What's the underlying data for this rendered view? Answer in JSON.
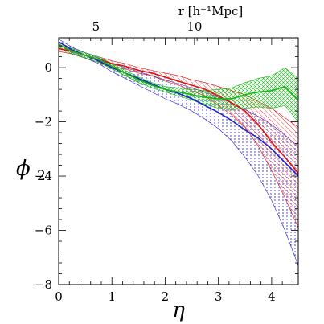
{
  "chart_data": {
    "type": "line",
    "xlabel": "η",
    "ylabel_main": "ϕ",
    "ylabel_sub": "2",
    "top_axis_label": "r [h⁻¹Mpc]",
    "xlim": [
      0,
      4.5
    ],
    "ylim": [
      -8,
      1.1
    ],
    "x_ticks": [
      0,
      1,
      2,
      3,
      4
    ],
    "y_ticks": [
      0,
      -2,
      -4,
      -6,
      -8
    ],
    "top_ticks": [
      {
        "label": "5",
        "eta": 0.7
      },
      {
        "label": "10",
        "eta": 2.55
      }
    ],
    "grid": false,
    "series": [
      {
        "color": "#2222cc",
        "band_style": "vertical-dotted",
        "x": [
          0,
          0.25,
          0.5,
          0.75,
          1.0,
          1.25,
          1.5,
          1.75,
          2.0,
          2.25,
          2.5,
          2.75,
          3.0,
          3.25,
          3.5,
          3.75,
          4.0,
          4.25,
          4.5
        ],
        "values": [
          0.95,
          0.65,
          0.45,
          0.25,
          0.0,
          -0.2,
          -0.4,
          -0.6,
          -0.8,
          -0.95,
          -1.15,
          -1.4,
          -1.65,
          -1.95,
          -2.3,
          -2.6,
          -3.0,
          -3.5,
          -4.0
        ],
        "upper": [
          1.05,
          0.75,
          0.55,
          0.35,
          0.15,
          0.0,
          -0.15,
          -0.3,
          -0.45,
          -0.6,
          -0.75,
          -0.9,
          -1.1,
          -1.3,
          -1.55,
          -1.8,
          -2.1,
          -2.5,
          -2.9
        ],
        "lower": [
          0.85,
          0.55,
          0.35,
          0.15,
          -0.15,
          -0.4,
          -0.65,
          -0.9,
          -1.15,
          -1.35,
          -1.6,
          -1.9,
          -2.25,
          -2.7,
          -3.3,
          -4.0,
          -4.9,
          -6.0,
          -7.3
        ]
      },
      {
        "color": "#dd1111",
        "band_style": "diagonal-hatch",
        "x": [
          0,
          0.25,
          0.5,
          0.75,
          1.0,
          1.25,
          1.5,
          1.75,
          2.0,
          2.25,
          2.5,
          2.75,
          3.0,
          3.25,
          3.5,
          3.75,
          4.0,
          4.25,
          4.5
        ],
        "values": [
          0.7,
          0.6,
          0.45,
          0.3,
          0.15,
          0.05,
          -0.1,
          -0.2,
          -0.35,
          -0.5,
          -0.65,
          -0.8,
          -1.05,
          -1.3,
          -1.6,
          -2.1,
          -2.75,
          -3.3,
          -3.9
        ],
        "upper": [
          0.8,
          0.7,
          0.55,
          0.4,
          0.25,
          0.15,
          0.0,
          -0.1,
          -0.2,
          -0.3,
          -0.45,
          -0.55,
          -0.7,
          -0.85,
          -1.0,
          -1.25,
          -1.5,
          -1.85,
          -2.2
        ],
        "lower": [
          0.6,
          0.5,
          0.35,
          0.2,
          0.05,
          -0.05,
          -0.2,
          -0.3,
          -0.5,
          -0.65,
          -0.85,
          -1.05,
          -1.4,
          -1.75,
          -2.2,
          -2.9,
          -3.8,
          -4.8,
          -5.9
        ]
      },
      {
        "color": "#11bb11",
        "band_style": "cross-hatch",
        "x": [
          0,
          0.25,
          0.5,
          0.75,
          1.0,
          1.25,
          1.5,
          1.75,
          2.0,
          2.25,
          2.5,
          2.75,
          3.0,
          3.25,
          3.5,
          3.75,
          4.0,
          4.25,
          4.5
        ],
        "values": [
          0.85,
          0.6,
          0.45,
          0.3,
          0.05,
          -0.2,
          -0.45,
          -0.65,
          -0.8,
          -0.9,
          -1.0,
          -1.1,
          -1.15,
          -1.15,
          -1.0,
          -0.9,
          -0.85,
          -0.7,
          -1.2
        ],
        "upper": [
          0.95,
          0.7,
          0.55,
          0.4,
          0.15,
          -0.1,
          -0.35,
          -0.55,
          -0.7,
          -0.75,
          -0.8,
          -0.85,
          -0.8,
          -0.75,
          -0.55,
          -0.4,
          -0.3,
          0.0,
          -0.4
        ],
        "lower": [
          0.75,
          0.5,
          0.35,
          0.2,
          -0.05,
          -0.3,
          -0.55,
          -0.75,
          -0.9,
          -1.05,
          -1.2,
          -1.35,
          -1.5,
          -1.55,
          -1.5,
          -1.45,
          -1.5,
          -1.4,
          -2.0
        ]
      }
    ]
  }
}
